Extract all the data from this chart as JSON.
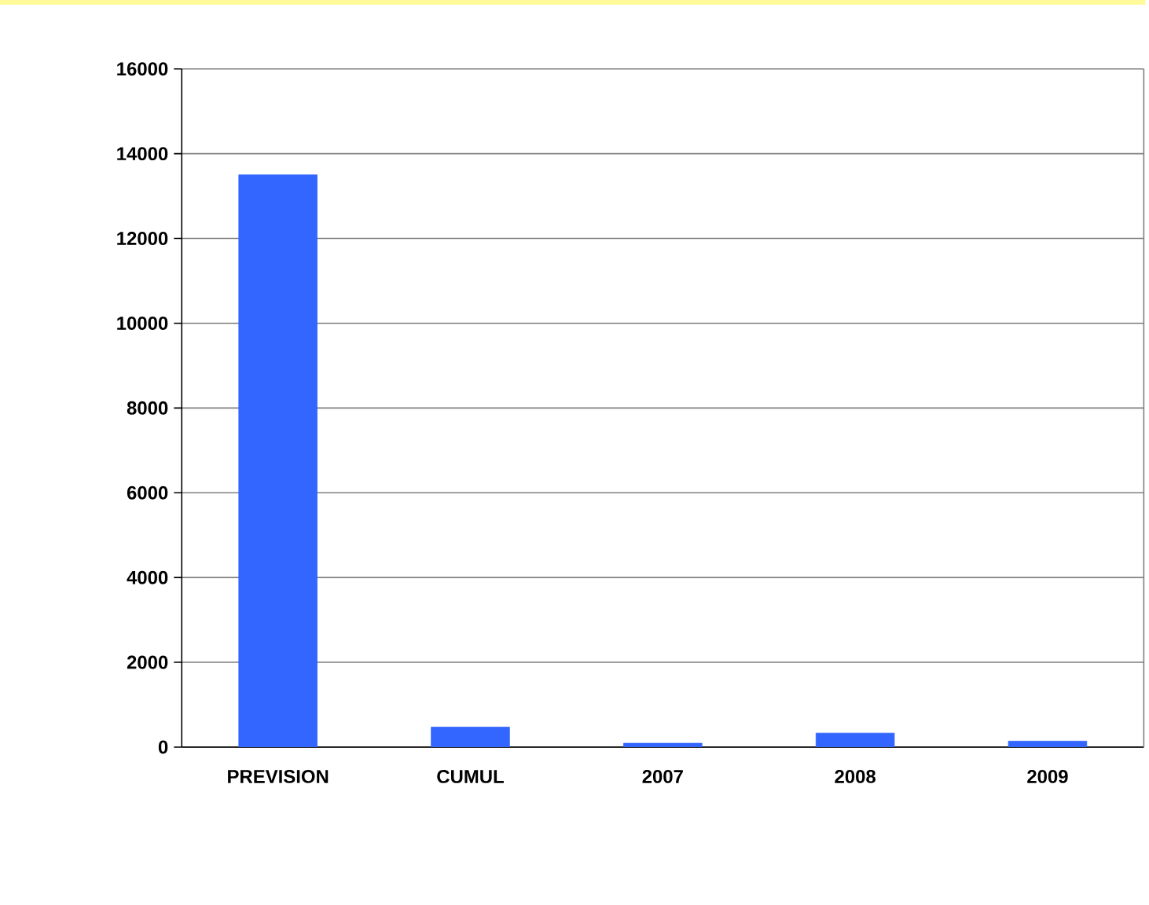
{
  "chart_data": {
    "type": "bar",
    "categories": [
      "PREVISION",
      "CUMUL",
      "2007",
      "2008",
      "2009"
    ],
    "values": [
      13500,
      470,
      90,
      330,
      140
    ],
    "color": "#3366ff",
    "ylim": [
      0,
      16000
    ],
    "yticks": [
      0,
      2000,
      4000,
      6000,
      8000,
      10000,
      12000,
      14000,
      16000
    ],
    "grid": "y"
  }
}
